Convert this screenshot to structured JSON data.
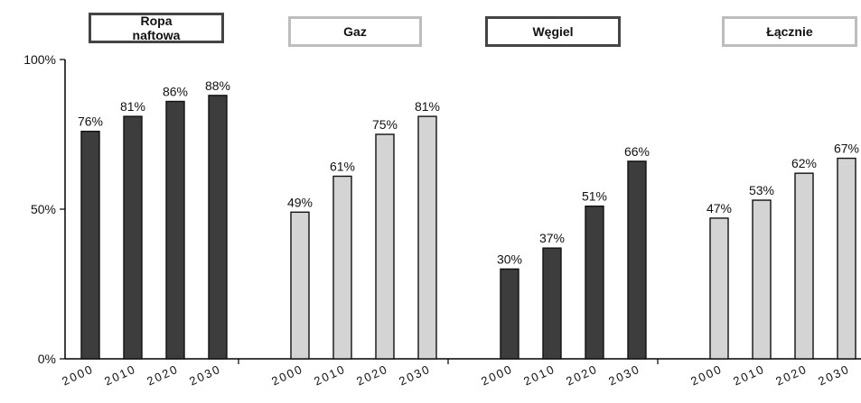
{
  "chart_data": {
    "type": "bar",
    "ylim": [
      0,
      100
    ],
    "yticks": [
      "0%",
      "50%",
      "100%"
    ],
    "groups": [
      {
        "name": "Ropa naftowa",
        "color": "#3d3d3d",
        "categories": [
          "2000",
          "2010",
          "2020",
          "2030"
        ],
        "values": [
          76,
          81,
          86,
          88
        ],
        "labels": [
          "76%",
          "81%",
          "86%",
          "88%"
        ]
      },
      {
        "name": "Gaz",
        "color": "#d4d4d4",
        "categories": [
          "2000",
          "2010",
          "2020",
          "2030"
        ],
        "values": [
          49,
          61,
          75,
          81
        ],
        "labels": [
          "49%",
          "61%",
          "75%",
          "81%"
        ]
      },
      {
        "name": "Węgiel",
        "color": "#3d3d3d",
        "categories": [
          "2000",
          "2010",
          "2020",
          "2030"
        ],
        "values": [
          30,
          37,
          51,
          66
        ],
        "labels": [
          "30%",
          "37%",
          "51%",
          "66%"
        ]
      },
      {
        "name": "Łącznie",
        "color": "#d4d4d4",
        "categories": [
          "2000",
          "2010",
          "2020",
          "2030"
        ],
        "values": [
          47,
          53,
          62,
          67
        ],
        "labels": [
          "47%",
          "53%",
          "62%",
          "67%"
        ]
      }
    ],
    "legend_text": [
      "Ropa\nnaftowa",
      "Gaz",
      "Węgiel",
      "Łącznie"
    ]
  }
}
